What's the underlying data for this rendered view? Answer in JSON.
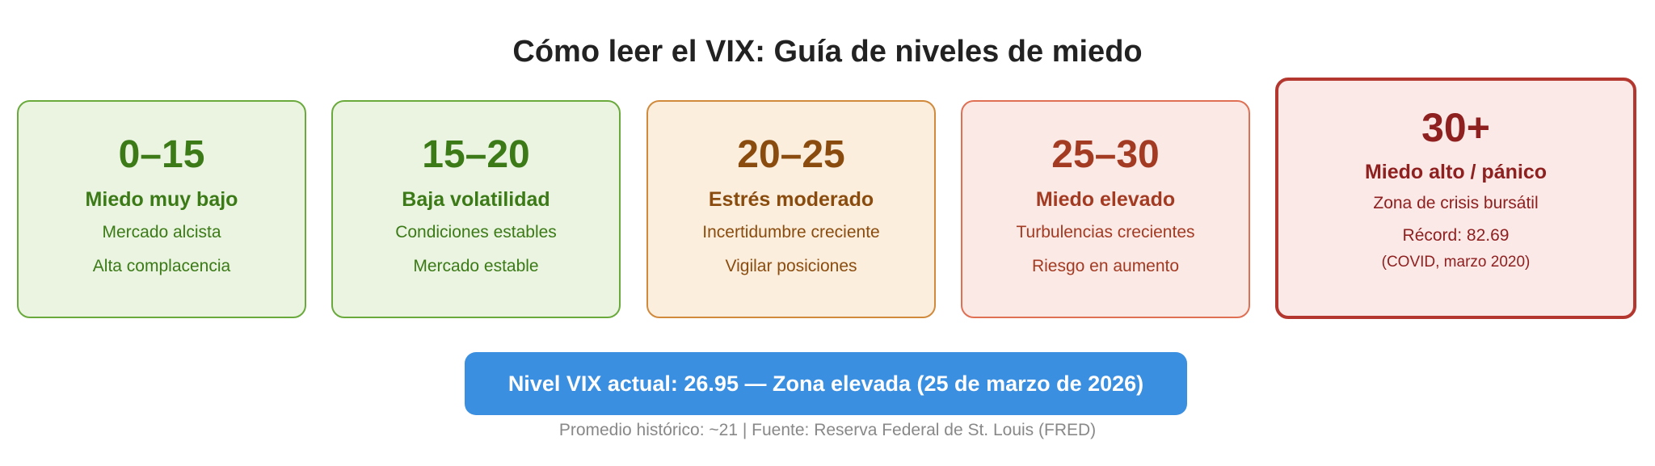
{
  "title": "Cómo leer el VIX: Guía de niveles de miedo",
  "cards": [
    {
      "range": "0–15",
      "level": "Miedo muy bajo",
      "lines": [
        "Mercado alcista",
        "Alta complacencia"
      ],
      "color": "#3b7a16",
      "border": "#6aaa3c",
      "background": "#eaf4e1"
    },
    {
      "range": "15–20",
      "level": "Baja volatilidad",
      "lines": [
        "Condiciones estables",
        "Mercado estable"
      ],
      "color": "#3b7a16",
      "border": "#6aaa3c",
      "background": "#eaf4e1"
    },
    {
      "range": "20–25",
      "level": "Estrés moderado",
      "lines": [
        "Incertidumbre creciente",
        "Vigilar posiciones"
      ],
      "color": "#8a4c0e",
      "border": "#d18a3c",
      "background": "#fbeedd"
    },
    {
      "range": "25–30",
      "level": "Miedo elevado",
      "lines": [
        "Turbulencias crecientes",
        "Riesgo en aumento"
      ],
      "color": "#a33a22",
      "border": "#e07054",
      "background": "#fbe9e6"
    },
    {
      "range": "30+",
      "level": "Miedo alto / pánico",
      "lines": [
        "Zona de crisis bursátil",
        "Récord: 82.69"
      ],
      "note": "(COVID, marzo 2020)",
      "color": "#8e2020",
      "border": "#b3372f",
      "background": "#fbe9e7"
    }
  ],
  "current": "Nivel VIX actual: 26.95 — Zona elevada (25 de marzo de 2026)",
  "current_color": "#3b8fe0",
  "footnote": "Promedio histórico: ~21 | Fuente: Reserva Federal de St. Louis (FRED)"
}
